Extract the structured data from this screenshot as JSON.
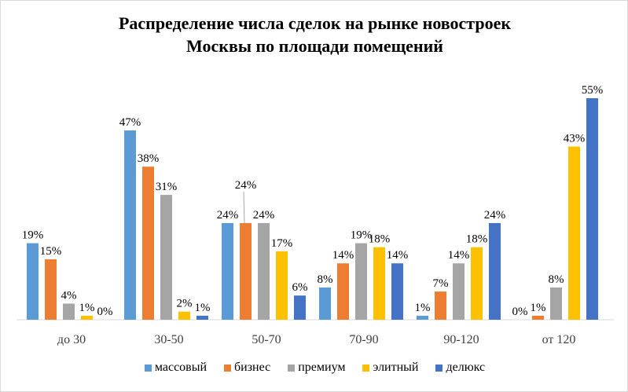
{
  "chart_data": {
    "type": "bar",
    "title": "Распределение числа сделок на рынке новостроек Москвы по площади помещений",
    "title_lines": [
      "Распределение числа сделок на рынке новостроек",
      "Москвы по площади помещений"
    ],
    "categories": [
      "до 30",
      "30-50",
      "50-70",
      "70-90",
      "90-120",
      "от 120"
    ],
    "series": [
      {
        "name": "массовый",
        "color": "#5B9BD5",
        "values": [
          19,
          47,
          24,
          8,
          1,
          0
        ]
      },
      {
        "name": "бизнес",
        "color": "#ED7D31",
        "values": [
          15,
          38,
          24,
          14,
          7,
          1
        ]
      },
      {
        "name": "премиум",
        "color": "#A5A5A5",
        "values": [
          4,
          31,
          24,
          19,
          14,
          8
        ]
      },
      {
        "name": "элитный",
        "color": "#FFC000",
        "values": [
          1,
          2,
          17,
          18,
          18,
          43
        ]
      },
      {
        "name": "делюкс",
        "color": "#4472C4",
        "values": [
          0,
          1,
          6,
          14,
          24,
          55
        ]
      }
    ],
    "unit": "%",
    "ylim": [
      0,
      55
    ],
    "grid": false,
    "legend": "bottom"
  }
}
